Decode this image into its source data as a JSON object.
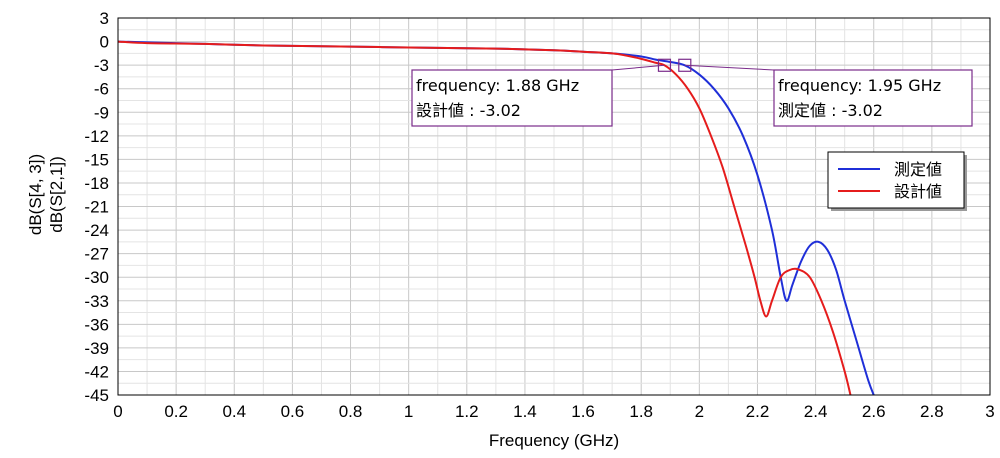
{
  "chart_data": {
    "type": "line",
    "title": "",
    "xlabel": "Frequency (GHz)",
    "ylabel_series_a": "dB(S[2,1])",
    "ylabel_series_b": "dB(S[4, 3])",
    "xlim": [
      0,
      3
    ],
    "ylim": [
      -45,
      3
    ],
    "x_ticks": [
      "0",
      "0.2",
      "0.4",
      "0.6",
      "0.8",
      "1",
      "1.2",
      "1.4",
      "1.6",
      "1.8",
      "2",
      "2.2",
      "2.4",
      "2.6",
      "2.8",
      "3"
    ],
    "y_ticks": [
      "3",
      "0",
      "-3",
      "-6",
      "-9",
      "-12",
      "-15",
      "-18",
      "-21",
      "-24",
      "-27",
      "-30",
      "-33",
      "-36",
      "-39",
      "-42",
      "-45"
    ],
    "grid": true,
    "legend_position": "right",
    "series": [
      {
        "name": "測定値",
        "color": "#1f2fd8",
        "x": [
          0,
          0.1,
          0.3,
          0.5,
          0.7,
          0.9,
          1.1,
          1.3,
          1.5,
          1.6,
          1.7,
          1.8,
          1.85,
          1.9,
          1.95,
          2.0,
          2.05,
          2.1,
          2.15,
          2.2,
          2.25,
          2.28,
          2.3,
          2.32,
          2.35,
          2.38,
          2.41,
          2.44,
          2.47,
          2.5,
          2.54,
          2.58,
          2.6
        ],
        "y": [
          0,
          -0.1,
          -0.3,
          -0.5,
          -0.6,
          -0.7,
          -0.8,
          -0.9,
          -1.1,
          -1.3,
          -1.5,
          -1.9,
          -2.3,
          -2.6,
          -3.02,
          -4.2,
          -6,
          -8.5,
          -12,
          -17,
          -24,
          -30,
          -33,
          -31,
          -28,
          -26,
          -25.5,
          -26.5,
          -29,
          -33,
          -38,
          -43,
          -45
        ]
      },
      {
        "name": "設計値",
        "color": "#e51c1c",
        "x": [
          0,
          0.1,
          0.3,
          0.5,
          0.7,
          0.9,
          1.1,
          1.3,
          1.5,
          1.6,
          1.7,
          1.75,
          1.8,
          1.85,
          1.88,
          1.92,
          1.96,
          2.0,
          2.04,
          2.08,
          2.12,
          2.16,
          2.19,
          2.21,
          2.23,
          2.25,
          2.28,
          2.31,
          2.34,
          2.38,
          2.42,
          2.46,
          2.5,
          2.52
        ],
        "y": [
          0,
          -0.2,
          -0.3,
          -0.5,
          -0.6,
          -0.7,
          -0.8,
          -0.9,
          -1.1,
          -1.3,
          -1.5,
          -1.8,
          -2.2,
          -2.7,
          -3.02,
          -4.2,
          -6,
          -8.5,
          -12,
          -16,
          -21,
          -26,
          -30,
          -33,
          -35,
          -33,
          -30,
          -29.1,
          -29,
          -30,
          -33,
          -37,
          -42,
          -45
        ]
      }
    ],
    "markers": [
      {
        "x": 1.88,
        "y": -3.02,
        "line1": "frequency: 1.88 GHz",
        "line2": "設計値 : -3.02"
      },
      {
        "x": 1.95,
        "y": -3.02,
        "line1": "frequency: 1.95 GHz",
        "line2": "測定値 : -3.02"
      }
    ]
  },
  "legend": {
    "items": [
      {
        "label": "測定値",
        "color": "#1f2fd8"
      },
      {
        "label": "設計値",
        "color": "#e51c1c"
      }
    ]
  }
}
